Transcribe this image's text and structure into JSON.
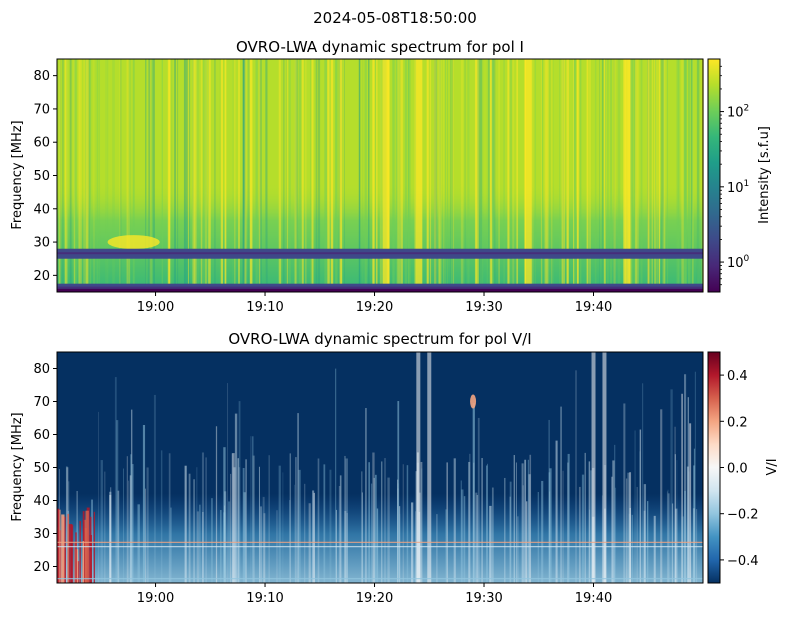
{
  "figure": {
    "suptitle": "2024-05-08T18:50:00"
  },
  "chart_data": [
    {
      "type": "heatmap",
      "title": "OVRO-LWA dynamic spectrum for pol I",
      "xlabel": "",
      "ylabel": "Frequency [MHz]",
      "x_time_range": [
        "18:51",
        "19:50"
      ],
      "ylim": [
        15,
        85
      ],
      "x_ticks": [
        "19:00",
        "19:10",
        "19:20",
        "19:30",
        "19:40"
      ],
      "y_ticks": [
        20,
        30,
        40,
        50,
        60,
        70,
        80
      ],
      "colorbar": {
        "label": "Intensity [s.f.u]",
        "scale": "log",
        "range": [
          0.4,
          500
        ],
        "ticks": [
          {
            "base": "10",
            "exp": "2",
            "value": 100
          },
          {
            "base": "10",
            "exp": "1",
            "value": 10
          },
          {
            "base": "10",
            "exp": "0",
            "value": 1
          }
        ],
        "colormap": "viridis"
      },
      "flagged_bands_mhz": [
        [
          25,
          28
        ],
        [
          15,
          17.5
        ]
      ],
      "features": {
        "background_low_mhz_level": "green (~10 s.f.u)",
        "background_high_mhz_level": "yellow-green (~100 s.f.u)",
        "bright_vertical_bursts": [
          "19:21",
          "19:24",
          "19:34",
          "19:43"
        ]
      }
    },
    {
      "type": "heatmap",
      "title": "OVRO-LWA dynamic spectrum for pol V/I",
      "xlabel": "",
      "ylabel": "Frequency [MHz]",
      "x_time_range": [
        "18:51",
        "19:50"
      ],
      "ylim": [
        15,
        85
      ],
      "x_ticks": [
        "19:00",
        "19:10",
        "19:20",
        "19:30",
        "19:40"
      ],
      "y_ticks": [
        20,
        30,
        40,
        50,
        60,
        70,
        80
      ],
      "colorbar": {
        "label": "V/I",
        "scale": "linear",
        "range": [
          -0.5,
          0.5
        ],
        "ticks": [
          "0.4",
          "0.2",
          "0.0",
          "−0.2",
          "−0.4"
        ],
        "tick_values": [
          0.4,
          0.2,
          0.0,
          -0.2,
          -0.4
        ],
        "colormap": "RdBu_r"
      },
      "features": {
        "dominant_value": -0.5,
        "positive_region": "18:51–18:54, below ~40 MHz",
        "blob_near_mhz": 70,
        "blob_time": "19:29"
      }
    }
  ],
  "colors": {
    "viridis": [
      "#440154",
      "#482878",
      "#3e4989",
      "#31688e",
      "#26828e",
      "#1f9e89",
      "#35b779",
      "#6ece58",
      "#b5de2b",
      "#fde725"
    ],
    "rdbu_r": [
      "#053061",
      "#2166ac",
      "#4393c3",
      "#92c5de",
      "#d1e5f0",
      "#f7f7f7",
      "#fddbc7",
      "#f4a582",
      "#d6604d",
      "#b2182b",
      "#67001f"
    ]
  }
}
